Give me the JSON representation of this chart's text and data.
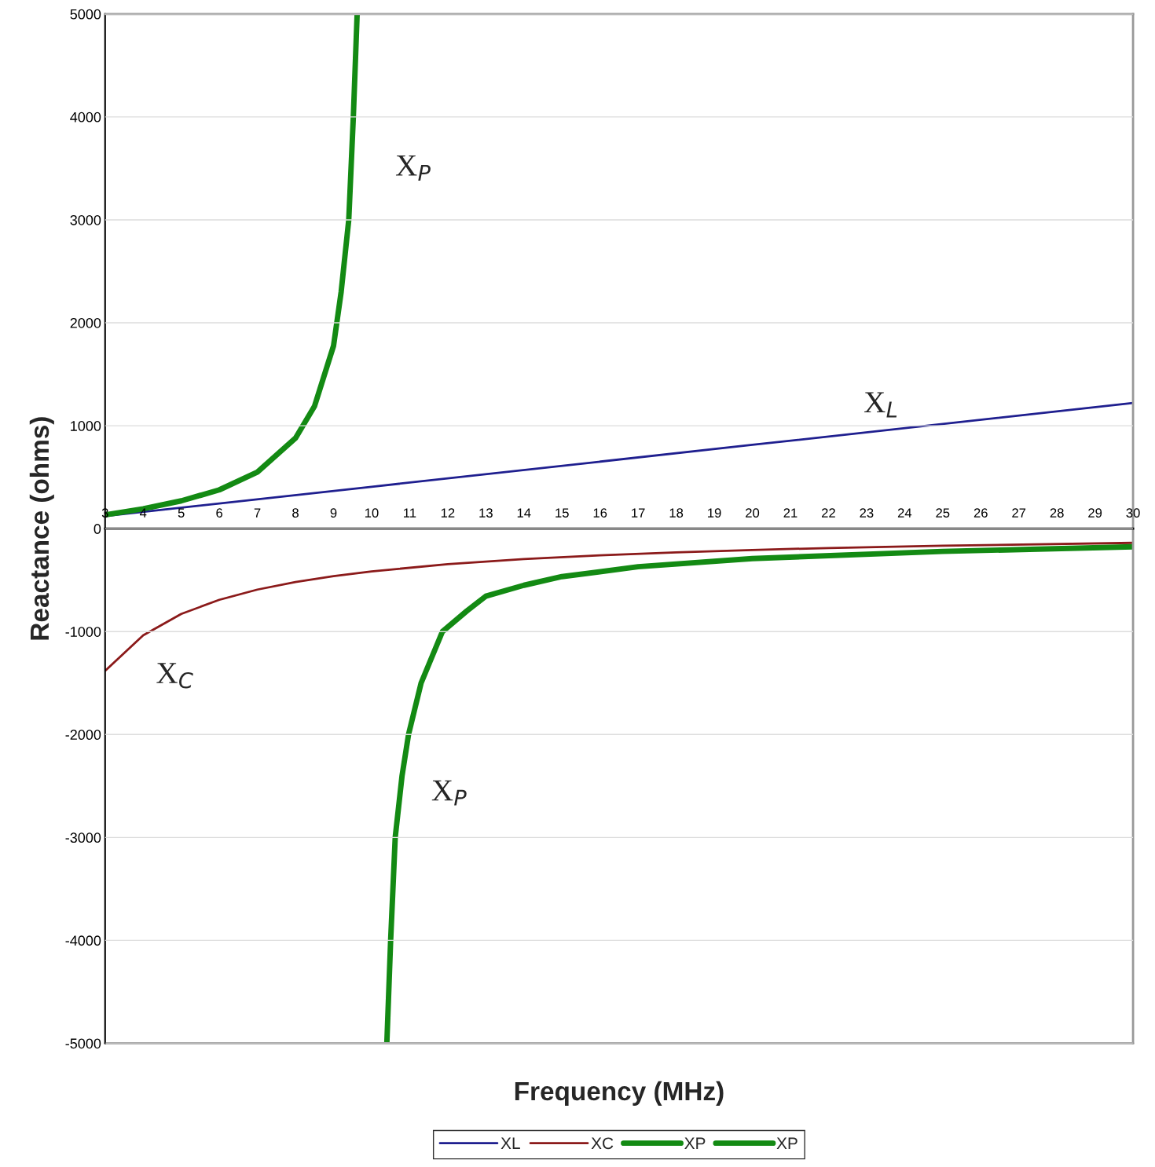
{
  "chart_data": {
    "type": "line",
    "xlabel": "Frequency (MHz)",
    "ylabel": "Reactance (ohms)",
    "xlim": [
      3,
      30
    ],
    "ylim": [
      -5000,
      5000
    ],
    "xticks": [
      3,
      4,
      5,
      6,
      7,
      8,
      9,
      10,
      11,
      12,
      13,
      14,
      15,
      16,
      17,
      18,
      19,
      20,
      21,
      22,
      23,
      24,
      25,
      26,
      27,
      28,
      29,
      30
    ],
    "yticks": [
      -5000,
      -4000,
      -3000,
      -2000,
      -1000,
      0,
      1000,
      2000,
      3000,
      4000,
      5000
    ],
    "grid": "y",
    "legend": "bottom",
    "marker": "none",
    "line_style": "solid",
    "series": [
      {
        "name": "XL",
        "color": "#1f1f8f",
        "x": [
          3,
          10,
          20,
          30
        ],
        "values": [
          122,
          407,
          814,
          1221
        ]
      },
      {
        "name": "XC",
        "color": "#8b1a1a",
        "x": [
          3,
          4,
          5,
          6,
          7,
          8,
          9,
          10,
          12,
          14,
          16,
          18,
          20,
          22,
          25,
          30
        ],
        "values": [
          -1382,
          -1036,
          -829,
          -691,
          -592,
          -518,
          -461,
          -415,
          -345,
          -296,
          -259,
          -230,
          -207,
          -188,
          -166,
          -138
        ]
      },
      {
        "name": "XP",
        "color": "#138a13",
        "x": [
          3,
          4,
          5,
          6,
          7,
          8,
          8.5,
          9,
          9.2,
          9.4,
          9.52,
          9.62
        ],
        "values": [
          134,
          193,
          270,
          377,
          550,
          879,
          1189,
          1776,
          2300,
          3000,
          4000,
          5000
        ]
      },
      {
        "name": "XP",
        "color": "#138a13",
        "x": [
          10.4,
          10.5,
          10.62,
          10.8,
          10.97,
          11.3,
          11.86,
          12.5,
          13,
          14,
          15,
          17,
          20,
          25,
          30
        ],
        "values": [
          -5000,
          -4000,
          -3000,
          -2400,
          -2000,
          -1500,
          -1000,
          -800,
          -656,
          -550,
          -466,
          -370,
          -290,
          -221,
          -176
        ]
      }
    ],
    "annotations": [
      "X$_{P}$",
      "X$_{L}$",
      "X$_{C}$",
      "X$_{P}$"
    ]
  }
}
